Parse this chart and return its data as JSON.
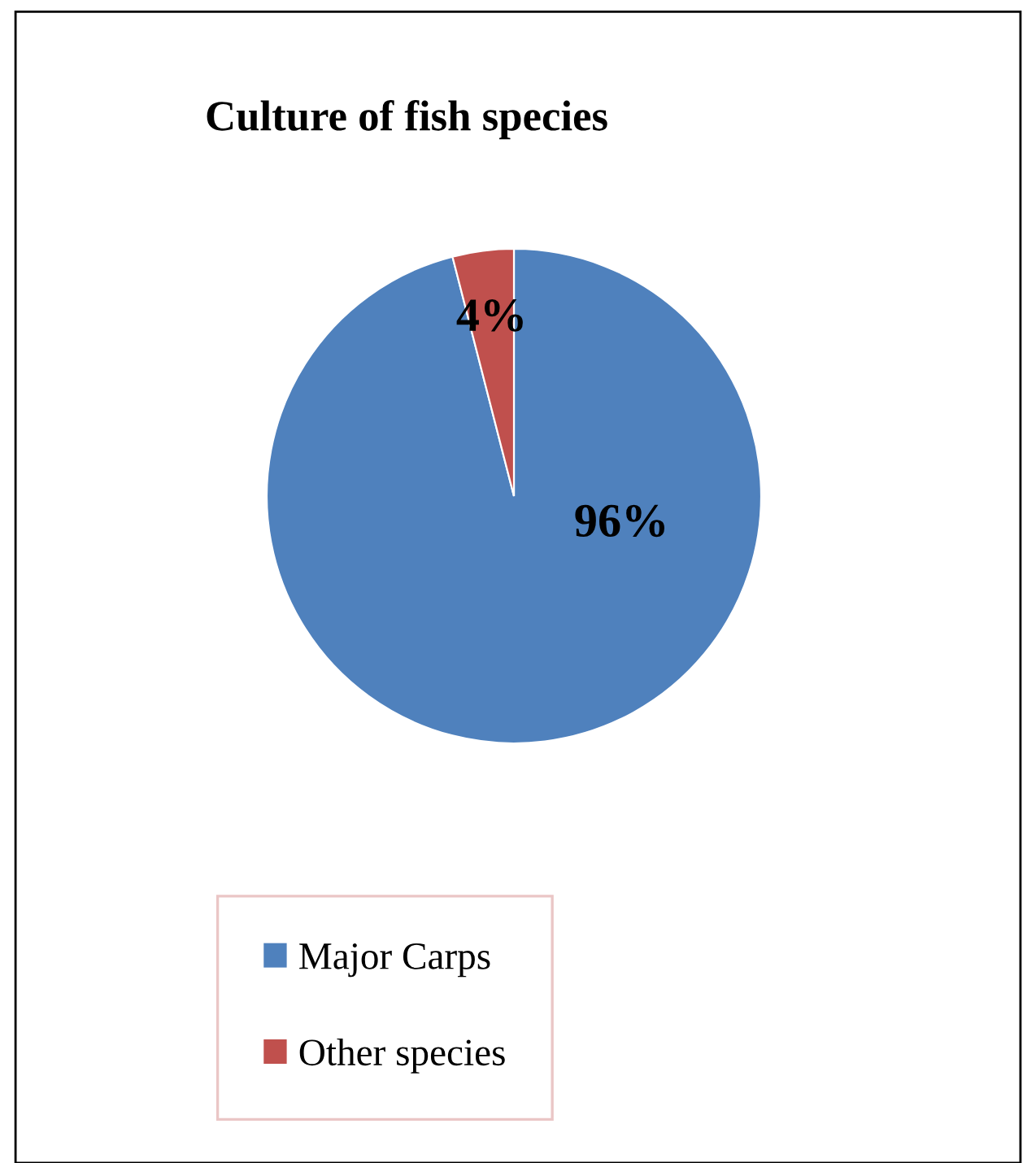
{
  "chart_data": {
    "type": "pie",
    "title": "Culture of fish species",
    "categories": [
      "Major Carps",
      "Other species"
    ],
    "values": [
      96,
      4
    ],
    "colors": [
      "#4f81bd",
      "#c0504d"
    ],
    "value_labels": [
      "96%",
      "4%"
    ],
    "legend": "bottom left"
  }
}
